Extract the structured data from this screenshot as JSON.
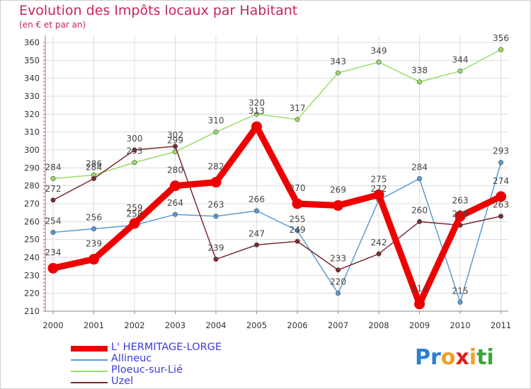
{
  "title": "Evolution des Impôts locaux par Habitant",
  "subtitle": "(en € et par an)",
  "logo": {
    "text": "Proxiti",
    "letters": [
      "P",
      "r",
      "o",
      "x",
      "i",
      "t",
      "i"
    ],
    "colors": [
      "#2a7fd4",
      "#2a7fd4",
      "#f0a020",
      "#e02020",
      "#f0a020",
      "#3aa63a",
      "#3aa63a"
    ]
  },
  "chart_data": {
    "type": "line",
    "title": "Evolution des Impôts locaux par Habitant",
    "subtitle": "(en € et par an)",
    "categories": [
      "2000",
      "2001",
      "2002",
      "2003",
      "2004",
      "2005",
      "2006",
      "2007",
      "2008",
      "2009",
      "2010",
      "2011"
    ],
    "ylim": [
      210,
      360
    ],
    "yticks": [
      210,
      220,
      230,
      240,
      250,
      260,
      270,
      280,
      290,
      300,
      310,
      320,
      330,
      340,
      350,
      360
    ],
    "grid": true,
    "legend_position": "bottom-left",
    "series": [
      {
        "name": "L' HERMITAGE-LORGE",
        "color": "#ee0000",
        "emphasis": true,
        "values": [
          234,
          239,
          259,
          280,
          282,
          313,
          270,
          269,
          275,
          214,
          263,
          274
        ],
        "labels": [
          "234",
          "239",
          "259",
          "280",
          "282",
          "313",
          "270",
          "269",
          "275",
          "214",
          "263",
          "274"
        ]
      },
      {
        "name": "Allineuc",
        "color": "#5b9bd5",
        "emphasis": false,
        "values": [
          254,
          256,
          258,
          264,
          263,
          266,
          255,
          220,
          272,
          284,
          215,
          293
        ],
        "labels": [
          "254",
          "256",
          "258",
          "264",
          "263",
          "266",
          "255",
          "220",
          "272",
          "284",
          "215",
          "293"
        ]
      },
      {
        "name": "Ploeuc-sur-Lié",
        "color": "#99dd66",
        "emphasis": false,
        "values": [
          284,
          286,
          293,
          299,
          310,
          320,
          317,
          343,
          349,
          338,
          344,
          356
        ],
        "labels": [
          "284",
          "286",
          "293",
          "299",
          "310",
          "320",
          "317",
          "343",
          "349",
          "338",
          "344",
          "356"
        ]
      },
      {
        "name": "Uzel",
        "color": "#7a2a30",
        "emphasis": false,
        "values": [
          272,
          284,
          300,
          302,
          239,
          247,
          249,
          233,
          242,
          260,
          258,
          263
        ],
        "labels": [
          "272",
          "284",
          "300",
          "302",
          "239",
          "247",
          "249",
          "233",
          "242",
          "260",
          "258",
          "263"
        ]
      }
    ]
  }
}
